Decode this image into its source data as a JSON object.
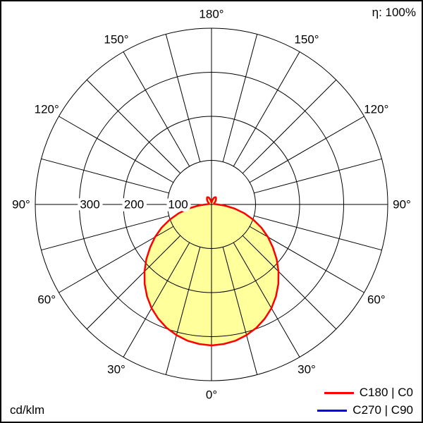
{
  "header": {
    "efficiency_label": "η: 100%"
  },
  "footer": {
    "unit_label": "cd/klm"
  },
  "legend": {
    "items": [
      {
        "label": "C180 | C0",
        "color": "#ff0000"
      },
      {
        "label": "C270 | C90",
        "color": "#0000ee"
      }
    ]
  },
  "chart_data": {
    "type": "line",
    "projection": "polar",
    "unit": "cd/klm",
    "efficiency": "100%",
    "angle_labels": [
      "0°",
      "30°",
      "60°",
      "90°",
      "120°",
      "150°",
      "180°"
    ],
    "angle_label_step_deg": 30,
    "grid_step_deg": 15,
    "radial_ticks": [
      100,
      200,
      300
    ],
    "r_max": 400,
    "series": [
      {
        "name": "C180 | C0",
        "color": "#ff0000",
        "fill": "#ffff9c",
        "symmetric": true,
        "gamma_deg": [
          0,
          5,
          10,
          15,
          20,
          25,
          30,
          35,
          40,
          45,
          50,
          55,
          60,
          65,
          70,
          75,
          80,
          85,
          90,
          95,
          100,
          105,
          110,
          115,
          120,
          125,
          130,
          135,
          140,
          145,
          150,
          155,
          160,
          165,
          170,
          175,
          180
        ],
        "values": [
          320,
          318,
          314,
          307,
          298,
          286,
          272,
          255,
          236,
          215,
          193,
          170,
          148,
          125,
          101,
          77,
          53,
          30,
          14,
          8,
          6,
          6,
          6,
          7,
          8,
          10,
          12,
          14,
          16,
          18,
          19,
          18,
          16,
          12,
          8,
          5,
          4
        ]
      }
    ]
  }
}
